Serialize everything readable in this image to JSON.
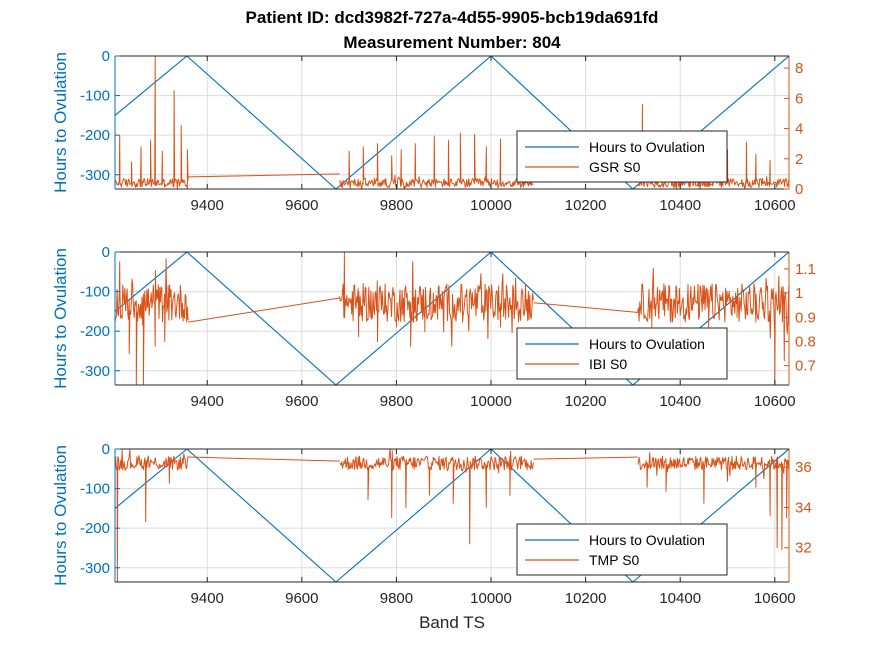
{
  "figure": {
    "title_line1": "Patient ID: dcd3982f-727a-4d55-9905-bcb19da691fd",
    "title_line2": "Measurement Number: 804",
    "colors": {
      "left": "#0072BD",
      "right": "#D95319",
      "grid": "#DCDCDC",
      "axis": "#262626"
    }
  },
  "chart_data": [
    {
      "type": "line",
      "xlabel": "",
      "ylabel_left": "Hours to Ovulation",
      "xlim": [
        9205,
        10630
      ],
      "ylim_left": [
        -336,
        0
      ],
      "ylim_right": [
        0,
        8.8
      ],
      "xticks": [
        9400,
        9600,
        9800,
        10000,
        10200,
        10400,
        10600
      ],
      "yticks_left": [
        0,
        -100,
        -200,
        -300
      ],
      "yticks_right": [
        0,
        2,
        4,
        6,
        8
      ],
      "grid": true,
      "legend_position": "inside-right",
      "series": [
        {
          "name": "Hours to Ovulation",
          "axis": "left",
          "kind": "sawtooth",
          "x": [
            9205,
            9357,
            9672,
            10000,
            10300,
            10630
          ],
          "y": [
            -150,
            0,
            -336,
            0,
            -336,
            0
          ]
        },
        {
          "name": "GSR S0",
          "axis": "right",
          "kind": "noisy",
          "segments": [
            [
              9205,
              9360
            ],
            [
              9680,
              10090
            ],
            [
              10310,
              10630
            ]
          ],
          "baseline": 0.4,
          "spread": 0.3,
          "spikes": [
            [
              9215,
              3.5
            ],
            [
              9240,
              1.8
            ],
            [
              9260,
              2.8
            ],
            [
              9280,
              3.2
            ],
            [
              9290,
              8.8
            ],
            [
              9305,
              2.5
            ],
            [
              9330,
              6.5
            ],
            [
              9345,
              4.2
            ],
            [
              9358,
              2.6
            ],
            [
              9700,
              2.5
            ],
            [
              9730,
              2.8
            ],
            [
              9760,
              3.0
            ],
            [
              9790,
              2.2
            ],
            [
              9810,
              2.6
            ],
            [
              9840,
              3.0
            ],
            [
              9880,
              3.5
            ],
            [
              9910,
              3.2
            ],
            [
              9935,
              3.7
            ],
            [
              9965,
              3.6
            ],
            [
              9990,
              2.8
            ],
            [
              10020,
              3.3
            ],
            [
              10060,
              2.4
            ],
            [
              10320,
              5.6
            ],
            [
              10350,
              2.1
            ],
            [
              10380,
              2.9
            ],
            [
              10420,
              3.4
            ],
            [
              10460,
              3.3
            ],
            [
              10500,
              2.6
            ],
            [
              10540,
              3.1
            ],
            [
              10560,
              2.3
            ],
            [
              10590,
              1.9
            ]
          ],
          "bridges": [
            [
              [
                9360,
                0.8
              ],
              [
                9680,
                1.0
              ]
            ],
            [
              [
                10090,
                1.1
              ],
              [
                10310,
                1.6
              ]
            ]
          ]
        }
      ]
    },
    {
      "type": "line",
      "xlabel": "",
      "ylabel_left": "Hours to Ovulation",
      "xlim": [
        9205,
        10630
      ],
      "ylim_left": [
        -336,
        0
      ],
      "ylim_right": [
        0.62,
        1.17
      ],
      "xticks": [
        9400,
        9600,
        9800,
        10000,
        10200,
        10400,
        10600
      ],
      "yticks_left": [
        0,
        -100,
        -200,
        -300
      ],
      "yticks_right": [
        0.7,
        0.8,
        0.9,
        1,
        1.1
      ],
      "yticklabels_right": [
        "0.7",
        "0.8",
        "0.9",
        "1",
        "1.1"
      ],
      "grid": true,
      "legend_position": "inside-right",
      "series": [
        {
          "name": "Hours to Ovulation",
          "axis": "left",
          "kind": "sawtooth",
          "x": [
            9205,
            9357,
            9672,
            10000,
            10300,
            10630
          ],
          "y": [
            -150,
            0,
            -336,
            0,
            -336,
            0
          ]
        },
        {
          "name": "IBI S0",
          "axis": "right",
          "kind": "noisy",
          "segments": [
            [
              9205,
              9360
            ],
            [
              9680,
              10090
            ],
            [
              10310,
              10630
            ]
          ],
          "baseline": 0.96,
          "spread": 0.08,
          "spikes": [
            [
              9215,
              1.13
            ],
            [
              9235,
              0.75
            ],
            [
              9250,
              0.62
            ],
            [
              9265,
              0.62
            ],
            [
              9290,
              0.78
            ],
            [
              9310,
              0.8
            ],
            [
              9690,
              1.18
            ],
            [
              9720,
              0.82
            ],
            [
              9760,
              0.8
            ],
            [
              9800,
              0.86
            ],
            [
              9830,
              0.78
            ],
            [
              9860,
              0.84
            ],
            [
              9900,
              0.84
            ],
            [
              9940,
              0.88
            ],
            [
              9980,
              0.92
            ],
            [
              10020,
              0.86
            ],
            [
              10340,
              0.86
            ],
            [
              10380,
              0.88
            ],
            [
              10420,
              0.92
            ],
            [
              10460,
              0.86
            ],
            [
              10520,
              0.9
            ],
            [
              10560,
              0.88
            ],
            [
              10600,
              0.62
            ],
            [
              10620,
              0.72
            ]
          ],
          "bridges": [
            [
              [
                9360,
                0.88
              ],
              [
                9680,
                0.98
              ]
            ],
            [
              [
                10090,
                0.96
              ],
              [
                10310,
                0.92
              ]
            ]
          ]
        }
      ]
    },
    {
      "type": "line",
      "xlabel": "Band TS",
      "ylabel_left": "Hours to Ovulation",
      "xlim": [
        9205,
        10630
      ],
      "ylim_left": [
        -336,
        0
      ],
      "ylim_right": [
        30.3,
        36.9
      ],
      "xticks": [
        9400,
        9600,
        9800,
        10000,
        10200,
        10400,
        10600
      ],
      "yticks_left": [
        0,
        -100,
        -200,
        -300
      ],
      "yticks_right": [
        32,
        34,
        36
      ],
      "grid": true,
      "legend_position": "inside-right",
      "series": [
        {
          "name": "Hours to Ovulation",
          "axis": "left",
          "kind": "sawtooth",
          "x": [
            9205,
            9357,
            9672,
            10000,
            10300,
            10630
          ],
          "y": [
            -150,
            0,
            -336,
            0,
            -336,
            0
          ]
        },
        {
          "name": "TMP S0",
          "axis": "right",
          "kind": "noisy",
          "segments": [
            [
              9205,
              9360
            ],
            [
              9680,
              10090
            ],
            [
              10310,
              10630
            ]
          ],
          "baseline": 36.2,
          "spread": 0.35,
          "spikes": [
            [
              9210,
              30.3
            ],
            [
              9270,
              33.3
            ],
            [
              9320,
              35.2
            ],
            [
              9740,
              34.4
            ],
            [
              9790,
              33.5
            ],
            [
              9820,
              34.0
            ],
            [
              9870,
              34.6
            ],
            [
              9920,
              34.2
            ],
            [
              9955,
              32.2
            ],
            [
              9990,
              34.0
            ],
            [
              10040,
              34.6
            ],
            [
              10330,
              35.0
            ],
            [
              10370,
              34.8
            ],
            [
              10450,
              34.2
            ],
            [
              10500,
              35.3
            ],
            [
              10560,
              35.0
            ],
            [
              10590,
              33.6
            ],
            [
              10605,
              32.0
            ],
            [
              10615,
              31.9
            ],
            [
              10625,
              33.5
            ]
          ],
          "bridges": [
            [
              [
                9360,
                36.5
              ],
              [
                9680,
                36.3
              ]
            ],
            [
              [
                10090,
                36.4
              ],
              [
                10310,
                36.5
              ]
            ]
          ]
        }
      ]
    }
  ]
}
